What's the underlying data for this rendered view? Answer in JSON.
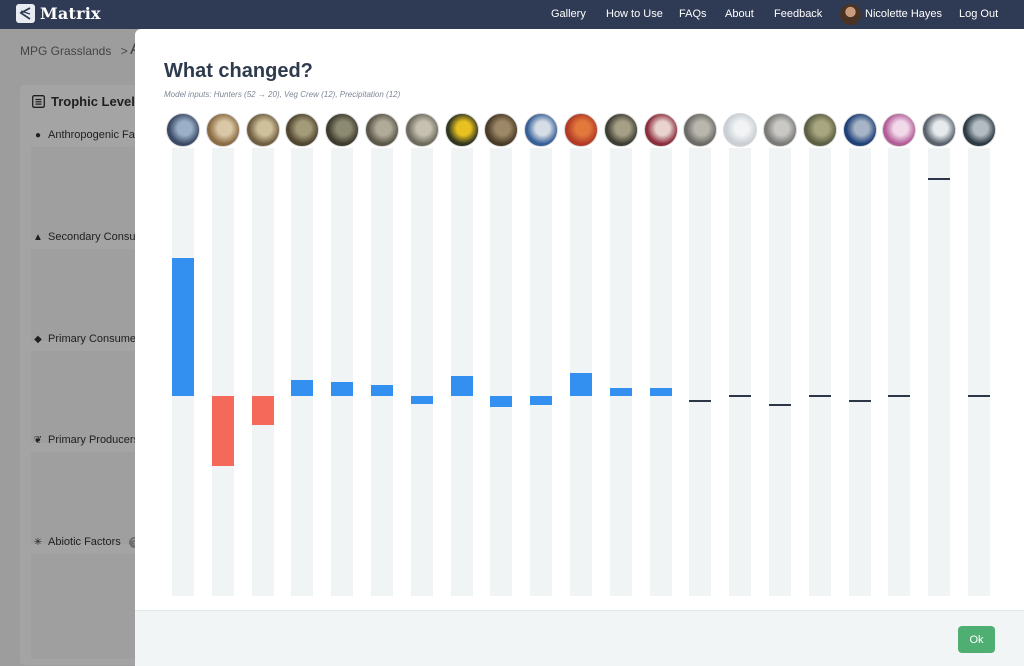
{
  "navbar": {
    "brand": "Matrix",
    "links": [
      "Gallery",
      "How to Use",
      "FAQs",
      "About",
      "Feedback"
    ],
    "user_name": "Nicolette Hayes",
    "logout": "Log Out"
  },
  "background_page": {
    "breadcrumb": "MPG Grasslands",
    "breadcrumb_separator": ">",
    "breadcrumb_next": "A",
    "sidebar_title": "Trophic Level",
    "sections": [
      "Anthropogenic Fa",
      "Secondary Consu",
      "Primary Consumer",
      "Primary Producers",
      "Abiotic Factors"
    ]
  },
  "modal": {
    "title": "What changed?",
    "subtitle": "Model inputs: Hunters (52 → 20), Veg Crew (12),  Precipitation (12)",
    "ok_label": "Ok"
  },
  "colors": {
    "increase": "#3390f0",
    "decrease": "#f4695a",
    "no_change": "#2c3648",
    "ok_button": "#4fae72",
    "navbar": "#2f3a54"
  },
  "chart_data": {
    "type": "bar",
    "baseline": "zero line across columns (no axis labels shown)",
    "columns": [
      {
        "icon": "hunter-photo-icon",
        "change": 0.61,
        "color": "increase"
      },
      {
        "icon": "elk-photo-icon",
        "change": -0.31,
        "color": "decrease"
      },
      {
        "icon": "deer-photo-icon",
        "change": -0.13,
        "color": "decrease"
      },
      {
        "icon": "owl-photo-icon",
        "change": 0.07,
        "color": "increase"
      },
      {
        "icon": "bird-photo-icon",
        "change": 0.06,
        "color": "increase"
      },
      {
        "icon": "rodent-photo-icon",
        "change": 0.05,
        "color": "increase"
      },
      {
        "icon": "grass-photo-icon",
        "change": -0.02,
        "color": "increase"
      },
      {
        "icon": "yellow-flower-photo-icon",
        "change": 0.09,
        "color": "increase"
      },
      {
        "icon": "insect-photo-icon",
        "change": -0.05,
        "color": "increase"
      },
      {
        "icon": "bluebird-photo-icon",
        "change": -0.04,
        "color": "increase"
      },
      {
        "icon": "red-bird-photo-icon",
        "change": 0.1,
        "color": "increase"
      },
      {
        "icon": "hawk-photo-icon",
        "change": 0.03,
        "color": "increase"
      },
      {
        "icon": "pink-flower-photo-icon",
        "change": 0.02,
        "color": "increase"
      },
      {
        "icon": "soil-photo-icon",
        "change": -0.02,
        "color": "no_change"
      },
      {
        "icon": "frost-photo-icon",
        "change": 0.0,
        "color": "no_change"
      },
      {
        "icon": "rock-photo-icon",
        "change": -0.04,
        "color": "no_change"
      },
      {
        "icon": "shrub-photo-icon",
        "change": 0.0,
        "color": "no_change"
      },
      {
        "icon": "blue-berry-photo-icon",
        "change": -0.02,
        "color": "no_change"
      },
      {
        "icon": "thistle-photo-icon",
        "change": 0.0,
        "color": "no_change"
      },
      {
        "icon": "sky-photo-icon",
        "change": 0.96,
        "color": "no_change"
      },
      {
        "icon": "water-photo-icon",
        "change": 0.0,
        "color": "no_change"
      }
    ]
  }
}
